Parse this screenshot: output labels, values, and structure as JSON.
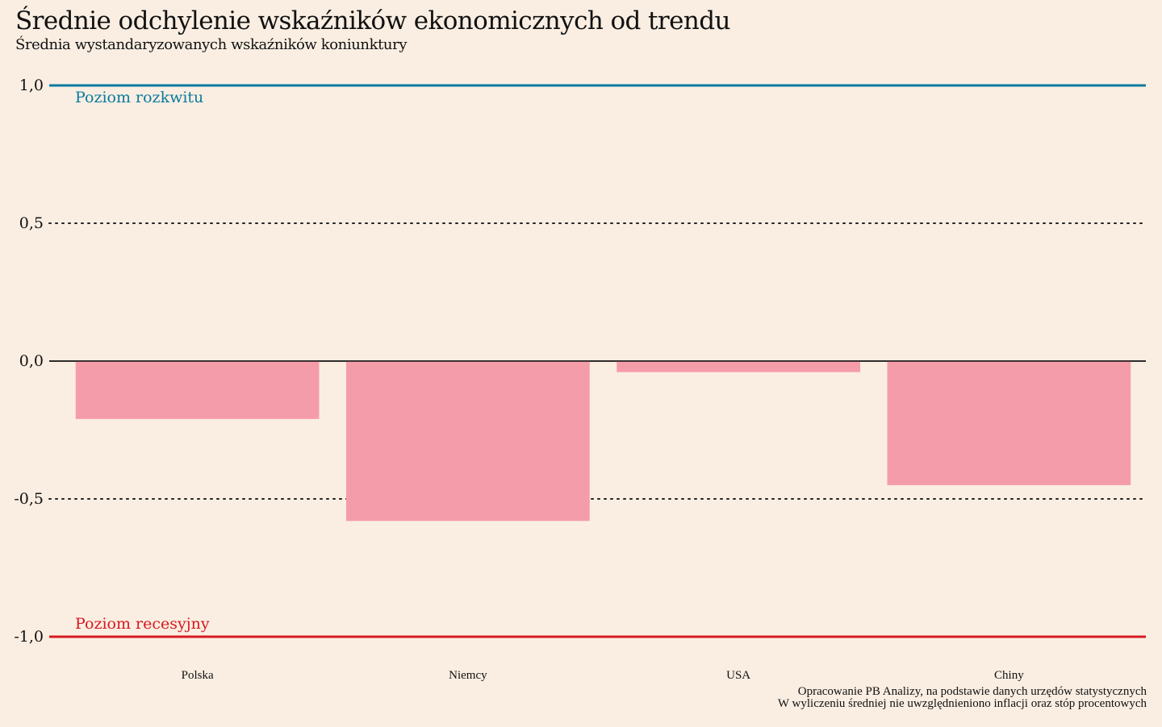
{
  "header": {
    "title": "Średnie odchylenie wskaźników ekonomicznych od trendu",
    "subtitle": "Średnia wystandaryzowanych wskaźników koniunktury"
  },
  "footer": {
    "source": "Opracowanie PB Analizy, na podstawie danych urzędów statystycznych",
    "note": "W wyliczeniu średniej nie uwzględnieniono inflacji oraz stóp procentowych"
  },
  "chart_data": {
    "type": "bar",
    "categories": [
      "Polska",
      "Niemcy",
      "USA",
      "Chiny"
    ],
    "values": [
      -0.21,
      -0.58,
      -0.04,
      -0.45
    ],
    "ylim": [
      -1.0,
      1.0
    ],
    "yticks": [
      {
        "value": 1.0,
        "label": "1,0"
      },
      {
        "value": 0.5,
        "label": "0,5"
      },
      {
        "value": 0.0,
        "label": "0,0"
      },
      {
        "value": -0.5,
        "label": "-0,5"
      },
      {
        "value": -1.0,
        "label": "-1,0"
      }
    ],
    "reference_lines": [
      {
        "value": 1.0,
        "label": "Poziom rozkwitu",
        "color": "#0A7A9E"
      },
      {
        "value": -1.0,
        "label": "Poziom recesyjny",
        "color": "#D71920"
      }
    ],
    "grid": "dotted",
    "bar_color": "#F59CAA",
    "background_color": "#FAEEE2"
  }
}
